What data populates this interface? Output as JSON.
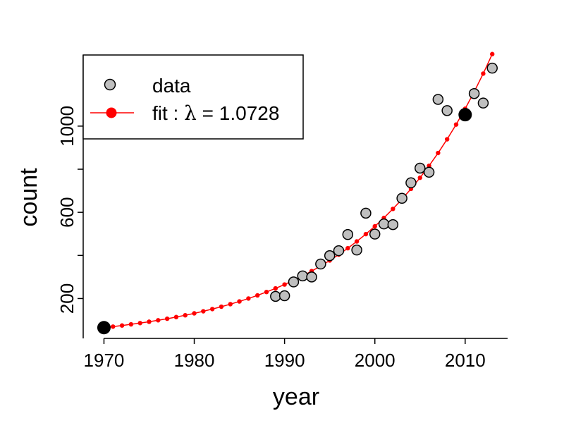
{
  "chart_data": {
    "type": "scatter",
    "xlabel": "year",
    "ylabel": "count",
    "xlim": [
      1967.7,
      2014.7
    ],
    "ylim": [
      15,
      1330
    ],
    "x_ticks": [
      1970,
      1980,
      1990,
      2000,
      2010
    ],
    "y_ticks": [
      200,
      400,
      600,
      800,
      1000
    ],
    "y_tick_labels": [
      "200",
      "",
      "600",
      "",
      "1000"
    ],
    "grid": false,
    "legend": {
      "position": "top-left",
      "entries": [
        {
          "label": "data",
          "marker": "grey-circle"
        },
        {
          "label": "fit : λ = 1.0728",
          "prefix": "fit : ",
          "symbol": "λ",
          "eq": " = 1.0728",
          "marker": "red-line-dot"
        }
      ]
    },
    "colors": {
      "data_fill": "#bfbfbf",
      "data_stroke": "#000000",
      "fit": "#ff0000",
      "anchor": "#000000"
    },
    "series": [
      {
        "name": "data",
        "x": [
          1989,
          1990,
          1991,
          1992,
          1993,
          1994,
          1995,
          1996,
          1997,
          1998,
          1999,
          2000,
          2001,
          2002,
          2003,
          2004,
          2005,
          2006,
          2007,
          2008,
          2010,
          2011,
          2012,
          2013
        ],
        "y": [
          210,
          213,
          277,
          305,
          300,
          360,
          399,
          422,
          497,
          425,
          596,
          499,
          546,
          543,
          665,
          737,
          805,
          786,
          1124,
          1072,
          1053,
          1151,
          1107,
          1269
        ]
      },
      {
        "name": "fit",
        "lambda": 1.0728,
        "x0": 1970,
        "y0": 65,
        "x_start": 1970,
        "x_end": 2013
      },
      {
        "name": "anchors",
        "x": [
          1970,
          2010
        ],
        "y": [
          65,
          1053
        ]
      }
    ]
  }
}
